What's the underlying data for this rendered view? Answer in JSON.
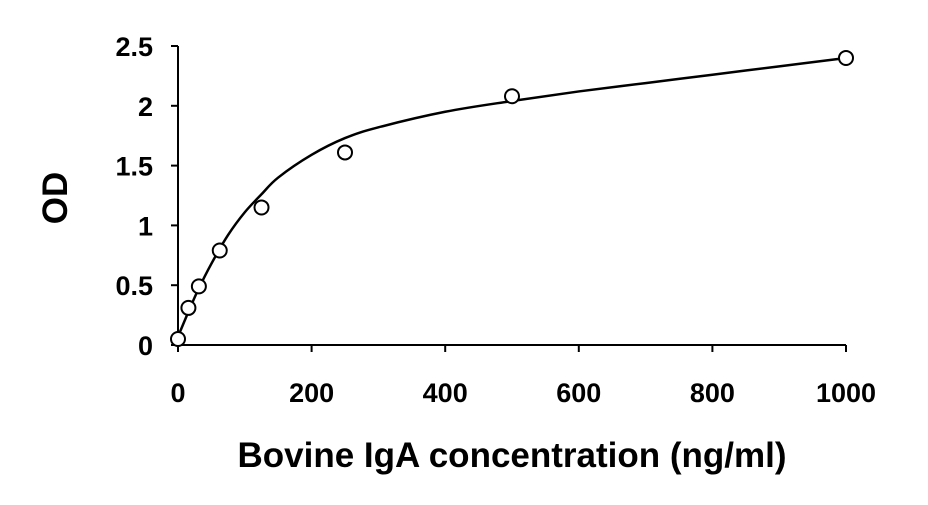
{
  "chart_data": {
    "type": "scatter",
    "title": "",
    "xlabel": "Bovine IgA concentration (ng/ml)",
    "ylabel": "OD",
    "xlim": [
      0,
      1000
    ],
    "ylim": [
      0,
      2.5
    ],
    "x_ticks": [
      "0",
      "200",
      "400",
      "600",
      "800",
      "1000"
    ],
    "y_ticks": [
      "0",
      "0.5",
      "1",
      "1.5",
      "2",
      "2.5"
    ],
    "grid": false,
    "legend": "none",
    "colors": {
      "axis": "#000000",
      "curve": "#000000",
      "marker": "#000000"
    },
    "series": [
      {
        "marker": "open-circle",
        "x": [
          0,
          15.6,
          31.25,
          62.5,
          125,
          250,
          500,
          1000
        ],
        "y": [
          0.05,
          0.31,
          0.49,
          0.79,
          1.15,
          1.61,
          2.08,
          2.4
        ]
      }
    ],
    "fit_curve": {
      "style": "smooth-line",
      "x": [
        0,
        15,
        30,
        50,
        75,
        100,
        125,
        150,
        200,
        250,
        300,
        400,
        500,
        600,
        700,
        800,
        900,
        1000
      ],
      "y": [
        0.07,
        0.27,
        0.46,
        0.68,
        0.92,
        1.11,
        1.26,
        1.4,
        1.59,
        1.73,
        1.82,
        1.95,
        2.04,
        2.12,
        2.19,
        2.26,
        2.33,
        2.4
      ]
    }
  }
}
